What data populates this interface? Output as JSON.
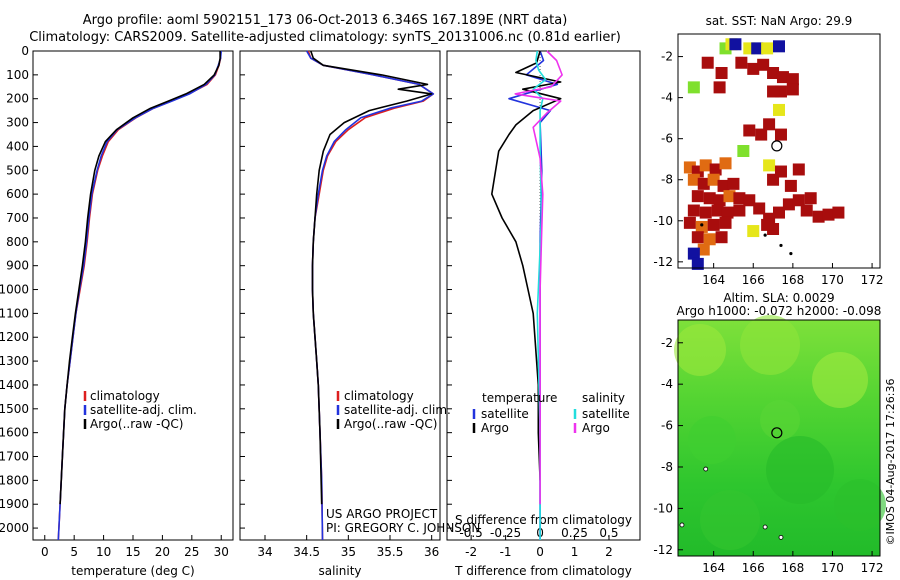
{
  "header": {
    "title_line1": "Argo profile: aoml 5902151_173 06-Oct-2013 6.346S 167.189E (NRT data)",
    "title_line2": "Climatology: CARS2009. Satellite-adjusted climatology: synTS_20131006.nc (0.81d earlier)"
  },
  "colors": {
    "climatology": "#dd1f1f",
    "satellite_adj": "#2233dd",
    "argo": "#000000",
    "salinity_satellite": "#22dddd",
    "salinity_argo": "#ee33ee",
    "sst_dark": "#a80d0d",
    "sst_orange": "#e06b12",
    "sst_yellow": "#e6e61a",
    "sst_green": "#7fe02d",
    "sst_blue": "#1111a0",
    "sla_green": "#2fcf2f"
  },
  "chart_data": [
    {
      "type": "line",
      "id": "temperature",
      "xlabel": "temperature (deg C)",
      "ylabel": "",
      "xlim": [
        -2,
        32
      ],
      "ylim": [
        2050,
        0
      ],
      "xticks": [
        "0",
        "5",
        "10",
        "15",
        "20",
        "25",
        "30"
      ],
      "xtick_values": [
        0,
        5,
        10,
        15,
        20,
        25,
        30
      ],
      "yticks": [
        "0",
        "100",
        "200",
        "300",
        "400",
        "500",
        "600",
        "700",
        "800",
        "900",
        "1000",
        "1100",
        "1200",
        "1300",
        "1400",
        "1500",
        "1600",
        "1700",
        "1800",
        "1900",
        "2000"
      ],
      "ytick_values": [
        0,
        100,
        200,
        300,
        400,
        500,
        600,
        700,
        800,
        900,
        1000,
        1100,
        1200,
        1300,
        1400,
        1500,
        1600,
        1700,
        1800,
        1900,
        2000
      ],
      "legend": [
        "climatology",
        "satellite-adj. clim.",
        "Argo(..raw -QC)"
      ],
      "legend_position": "bottom-right",
      "series": [
        {
          "name": "climatology",
          "color": "#dd1f1f",
          "x": [
            29.9,
            29.9,
            29.6,
            29.0,
            27.6,
            24.5,
            21.5,
            18.5,
            15.5,
            12.5,
            10.8,
            9.8,
            9.0,
            8.1,
            7.6,
            7.2,
            6.7,
            6.0,
            5.3,
            4.8,
            4.3,
            3.8,
            3.4,
            3.0,
            2.6,
            2.3
          ],
          "y": [
            0,
            30,
            60,
            100,
            140,
            180,
            210,
            240,
            280,
            330,
            380,
            440,
            500,
            600,
            700,
            800,
            900,
            1000,
            1100,
            1200,
            1300,
            1400,
            1500,
            1700,
            1900,
            2050
          ]
        },
        {
          "name": "satellite-adj. clim.",
          "color": "#2233dd",
          "x": [
            30.0,
            29.9,
            29.5,
            28.9,
            27.4,
            24.6,
            21.6,
            18.5,
            15.4,
            12.3,
            10.6,
            9.6,
            8.9,
            8.0,
            7.5,
            7.1,
            6.6,
            5.9,
            5.3,
            4.8,
            4.3,
            3.8,
            3.4,
            3.0,
            2.6,
            2.3
          ],
          "y": [
            0,
            30,
            60,
            100,
            140,
            180,
            210,
            240,
            280,
            330,
            380,
            440,
            500,
            600,
            700,
            800,
            900,
            1000,
            1100,
            1200,
            1300,
            1400,
            1500,
            1700,
            1900,
            2050
          ]
        },
        {
          "name": "Argo(..raw -QC)",
          "color": "#000000",
          "x": [
            29.8,
            29.8,
            29.6,
            28.8,
            27.1,
            24.0,
            21.0,
            18.0,
            15.0,
            12.2,
            10.3,
            9.2,
            8.5,
            7.8,
            7.3,
            6.9,
            6.4,
            5.8,
            5.2,
            4.7,
            4.2,
            3.8,
            3.4,
            3.0,
            2.6
          ],
          "y": [
            0,
            30,
            60,
            100,
            140,
            180,
            210,
            240,
            280,
            330,
            380,
            440,
            500,
            600,
            700,
            800,
            900,
            1000,
            1100,
            1200,
            1300,
            1400,
            1500,
            1700,
            1900
          ]
        }
      ]
    },
    {
      "type": "line",
      "id": "salinity",
      "xlabel": "salinity",
      "xlim": [
        33.7,
        36.1
      ],
      "ylim": [
        2050,
        0
      ],
      "xticks": [
        "34",
        "34.5",
        "35",
        "35.5",
        "36"
      ],
      "xtick_values": [
        34,
        34.5,
        35,
        35.5,
        36
      ],
      "legend": [
        "climatology",
        "satellite-adj. clim.",
        "Argo(..raw -QC)"
      ],
      "legend_position": "bottom-right",
      "annotations": [
        "US ARGO PROJECT",
        "PI: GREGORY C. JOHNSON"
      ],
      "series": [
        {
          "name": "climatology",
          "color": "#dd1f1f",
          "x": [
            34.52,
            34.55,
            34.7,
            35.3,
            35.85,
            36.02,
            35.9,
            35.55,
            35.2,
            35.0,
            34.85,
            34.75,
            34.7,
            34.65,
            34.6,
            34.58,
            34.57,
            34.57,
            34.58,
            34.6,
            34.62,
            34.64,
            34.66,
            34.68,
            34.69
          ],
          "y": [
            0,
            30,
            60,
            100,
            140,
            180,
            210,
            240,
            280,
            330,
            380,
            440,
            500,
            600,
            700,
            800,
            900,
            1000,
            1100,
            1200,
            1300,
            1400,
            1600,
            1800,
            2050
          ]
        },
        {
          "name": "satellite-adj. clim.",
          "color": "#2233dd",
          "x": [
            34.5,
            34.55,
            34.7,
            35.3,
            35.85,
            36.02,
            35.88,
            35.5,
            35.15,
            34.97,
            34.83,
            34.74,
            34.69,
            34.64,
            34.6,
            34.58,
            34.57,
            34.57,
            34.58,
            34.6,
            34.62,
            34.64,
            34.66,
            34.68,
            34.69
          ],
          "y": [
            0,
            30,
            60,
            100,
            140,
            180,
            210,
            240,
            280,
            330,
            380,
            440,
            500,
            600,
            700,
            800,
            900,
            1000,
            1100,
            1200,
            1300,
            1400,
            1600,
            1800,
            2050
          ]
        },
        {
          "name": "Argo(..raw -QC)",
          "color": "#000000",
          "x": [
            34.55,
            34.58,
            34.7,
            35.4,
            35.95,
            35.6,
            36.0,
            35.7,
            35.25,
            34.95,
            34.78,
            34.7,
            34.65,
            34.62,
            34.6,
            34.58,
            34.57,
            34.57,
            34.58,
            34.6,
            34.62,
            34.64,
            34.66,
            34.68
          ],
          "y": [
            0,
            30,
            60,
            100,
            140,
            160,
            180,
            210,
            250,
            300,
            350,
            420,
            500,
            600,
            700,
            800,
            900,
            1000,
            1100,
            1200,
            1300,
            1400,
            1600,
            1900
          ]
        }
      ]
    },
    {
      "type": "line",
      "id": "difference",
      "xlabel": "T difference from climatology",
      "top_xlabel": "S difference from climatology",
      "xlim": [
        -2.7,
        2.9
      ],
      "ylim": [
        2050,
        0
      ],
      "xticks": [
        "-2",
        "-1",
        "0",
        "1",
        "2"
      ],
      "xtick_values": [
        -2,
        -1,
        0,
        1,
        2
      ],
      "s_xticks": [
        "-0.5",
        "-0.25",
        "0",
        "0.25",
        "0.5"
      ],
      "s_xtick_values": [
        -0.5,
        -0.25,
        0,
        0.25,
        0.5
      ],
      "legend_headers": [
        "temperature",
        "salinity"
      ],
      "legend": [
        "satellite",
        "Argo",
        "satellite",
        "Argo"
      ],
      "series": [
        {
          "name": "temperature satellite",
          "color": "#2233dd",
          "x": [
            0.0,
            0.1,
            -0.4,
            0.5,
            -0.9,
            0.3,
            0.0,
            0.05,
            0.0,
            0.0,
            0.0,
            0.0,
            0.0
          ],
          "y": [
            0,
            40,
            100,
            140,
            200,
            250,
            300,
            500,
            800,
            1100,
            1400,
            1700,
            2050
          ]
        },
        {
          "name": "temperature Argo",
          "color": "#000000",
          "x": [
            0.0,
            -0.1,
            -0.7,
            0.6,
            -0.5,
            0.6,
            -0.2,
            -0.7,
            -0.9,
            -1.2,
            -1.4,
            -1.1,
            -0.7,
            -0.5,
            -0.35,
            -0.2,
            -0.15,
            -0.1,
            -0.05,
            -0.05,
            0.0
          ],
          "y": [
            0,
            50,
            90,
            130,
            160,
            200,
            250,
            310,
            350,
            420,
            600,
            700,
            800,
            900,
            1000,
            1100,
            1200,
            1300,
            1400,
            1600,
            1800
          ]
        },
        {
          "name": "salinity satellite",
          "color": "#22dddd",
          "x": [
            -0.02,
            -0.03,
            -0.01,
            0.04,
            -0.05,
            0.02,
            0.0,
            0.0,
            0.01,
            -0.02,
            0.0,
            0.0
          ],
          "y": [
            0,
            40,
            80,
            120,
            160,
            200,
            250,
            400,
            700,
            1100,
            1600,
            2050
          ]
        },
        {
          "name": "salinity Argo",
          "color": "#ee33ee",
          "x": [
            0.05,
            0.12,
            0.16,
            0.08,
            -0.18,
            0.15,
            0.05,
            -0.05,
            0.0,
            0.02,
            0.01,
            0.0,
            0.0,
            0.0
          ],
          "y": [
            0,
            40,
            100,
            150,
            180,
            210,
            260,
            320,
            450,
            600,
            800,
            1000,
            1300,
            1900
          ]
        }
      ]
    },
    {
      "type": "heatmap",
      "id": "sst_map",
      "title": "sat. SST: NaN Argo: 29.9",
      "xlim": [
        162.2,
        172.4
      ],
      "ylim": [
        -12.3,
        -0.9
      ],
      "xticks": [
        "164",
        "166",
        "168",
        "170",
        "172"
      ],
      "xtick_values": [
        164,
        166,
        168,
        170,
        172
      ],
      "yticks": [
        "-2",
        "-4",
        "-6",
        "-8",
        "-10",
        "-12"
      ],
      "ytick_values": [
        -2,
        -4,
        -6,
        -8,
        -10,
        -12
      ],
      "marker": {
        "lon": 167.19,
        "lat": -6.35
      }
    },
    {
      "type": "heatmap",
      "id": "sla_map",
      "title": "Altim. SLA: 0.0029",
      "subtitle": "Argo h1000: -0.072 h2000: -0.098",
      "xlim": [
        162.2,
        172.4
      ],
      "ylim": [
        -12.3,
        -0.9
      ],
      "xticks": [
        "164",
        "166",
        "168",
        "170",
        "172"
      ],
      "xtick_values": [
        164,
        166,
        168,
        170,
        172
      ],
      "yticks": [
        "-2",
        "-4",
        "-6",
        "-8",
        "-10",
        "-12"
      ],
      "ytick_values": [
        -2,
        -4,
        -6,
        -8,
        -10,
        -12
      ],
      "marker": {
        "lon": 167.19,
        "lat": -6.35
      }
    }
  ],
  "footer": {
    "credit": "©IMOS 04-Aug-2017 17:26:36"
  }
}
